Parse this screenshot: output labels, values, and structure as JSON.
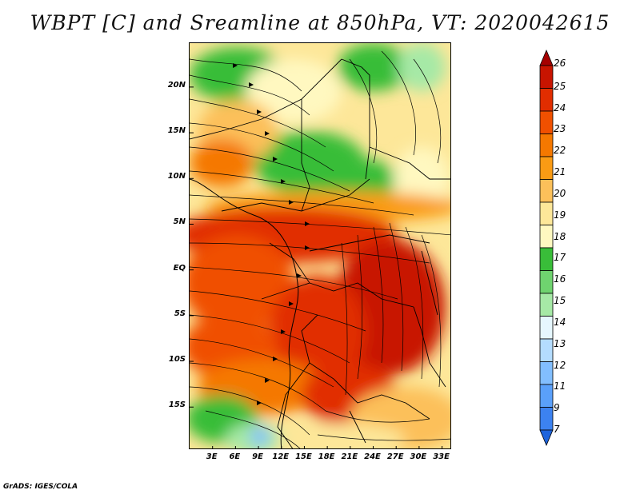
{
  "title": "WBPT [C] and Sreamline at 850hPa, VT: 2020042615",
  "credit": "GrADS: IGES/COLA",
  "map": {
    "lat_labels": [
      "20N",
      "15N",
      "10N",
      "5N",
      "EQ",
      "5S",
      "10S",
      "15S"
    ],
    "lat_values": [
      20,
      15,
      10,
      5,
      0,
      -5,
      -10,
      -15
    ],
    "lon_labels": [
      "3E",
      "6E",
      "9E",
      "12E",
      "15E",
      "18E",
      "21E",
      "24E",
      "27E",
      "30E",
      "33E"
    ],
    "lon_values": [
      3,
      6,
      9,
      12,
      15,
      18,
      21,
      24,
      27,
      30,
      33
    ],
    "lon_range": [
      0,
      34.3
    ],
    "lat_range": [
      -19.7,
      24.8
    ]
  },
  "colorbar": {
    "labels": [
      "26",
      "25",
      "24",
      "23",
      "22",
      "21",
      "20",
      "19",
      "18",
      "17",
      "16",
      "15",
      "14",
      "13",
      "12",
      "11",
      "9",
      "7"
    ],
    "colors": [
      "#a50000",
      "#c81400",
      "#e12d00",
      "#f05000",
      "#f57800",
      "#fa9b14",
      "#fcc05a",
      "#fde799",
      "#fff8c0",
      "#39bd39",
      "#6fd36f",
      "#a6e9a6",
      "#e6f7ff",
      "#b4dcff",
      "#82beff",
      "#5aa0fa",
      "#3c82f0",
      "#1e64dc"
    ]
  }
}
